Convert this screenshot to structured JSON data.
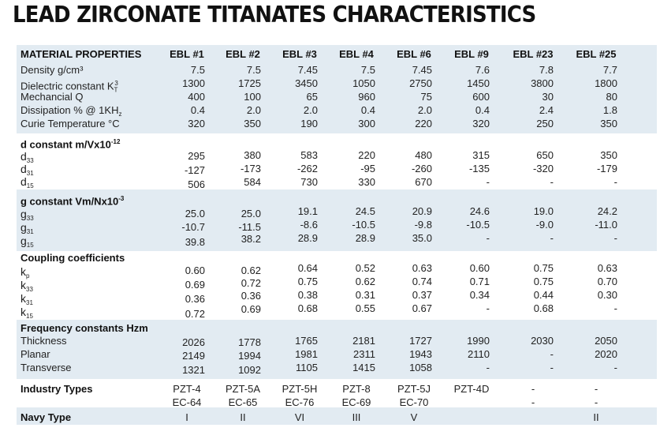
{
  "title": "LEAD ZIRCONATE TITANATES CHARACTERISTICS",
  "columns": [
    "EBL #1",
    "EBL #2",
    "EBL #3",
    "EBL #4",
    "EBL #6",
    "EBL #9",
    "EBL #23",
    "EBL #25"
  ],
  "material": {
    "heading": "MATERIAL PROPERTIES",
    "rows": [
      {
        "label": "Density g/cm³",
        "values": [
          "7.5",
          "7.5",
          "7.45",
          "7.5",
          "7.45",
          "7.6",
          "7.8",
          "7.7"
        ]
      },
      {
        "label": "Dielectric constant K",
        "sub": "T",
        "sup": "3",
        "values": [
          "1300",
          "1725",
          "3450",
          "1050",
          "2750",
          "1450",
          "3800",
          "1800"
        ]
      },
      {
        "label": "Mechancial Q",
        "values": [
          "400",
          "100",
          "65",
          "960",
          "75",
          "600",
          "30",
          "80"
        ]
      },
      {
        "label": "Dissipation % @ 1KH",
        "sub": "z",
        "values": [
          "0.4",
          "2.0",
          "2.0",
          "0.4",
          "2.0",
          "0.4",
          "2.4",
          "1.8"
        ]
      },
      {
        "label": "Curie Temperature °C",
        "values": [
          "320",
          "350",
          "190",
          "300",
          "220",
          "320",
          "250",
          "350"
        ]
      }
    ]
  },
  "d_constant": {
    "heading": "d constant m/Vx10",
    "heading_exp": "-12",
    "rows": [
      {
        "sym": "d",
        "sub": "33",
        "values": [
          "295",
          "380",
          "583",
          "220",
          "480",
          "315",
          "650",
          "350"
        ]
      },
      {
        "sym": "d",
        "sub": "31",
        "values": [
          "-127",
          "-173",
          "-262",
          "-95",
          "-260",
          "-135",
          "-320",
          "-179"
        ]
      },
      {
        "sym": "d",
        "sub": "15",
        "values": [
          "506",
          "584",
          "730",
          "330",
          "670",
          "-",
          "-",
          "-"
        ]
      }
    ]
  },
  "g_constant": {
    "heading": "g constant Vm/Nx10",
    "heading_exp": "-3",
    "rows": [
      {
        "sym": "g",
        "sub": "33",
        "values": [
          "25.0",
          "25.0",
          "19.1",
          "24.5",
          "20.9",
          "24.6",
          "19.0",
          "24.2"
        ]
      },
      {
        "sym": "g",
        "sub": "31",
        "values": [
          "-10.7",
          "-11.5",
          "-8.6",
          "-10.5",
          "-9.8",
          "-10.5",
          "-9.0",
          "-11.0"
        ]
      },
      {
        "sym": "g",
        "sub": "15",
        "values": [
          "39.8",
          "38.2",
          "28.9",
          "28.9",
          "35.0",
          "-",
          "-",
          "-"
        ]
      }
    ]
  },
  "coupling": {
    "heading": "Coupling coefficients",
    "rows": [
      {
        "sym": "k",
        "sub": "p",
        "values": [
          "0.60",
          "0.62",
          "0.64",
          "0.52",
          "0.63",
          "0.60",
          "0.75",
          "0.63"
        ]
      },
      {
        "sym": "k",
        "sub": "33",
        "values": [
          "0.69",
          "0.72",
          "0.75",
          "0.62",
          "0.74",
          "0.71",
          "0.75",
          "0.70"
        ]
      },
      {
        "sym": "k",
        "sub": "31",
        "values": [
          "0.36",
          "0.36",
          "0.38",
          "0.31",
          "0.37",
          "0.34",
          "0.44",
          "0.30"
        ]
      },
      {
        "sym": "k",
        "sub": "15",
        "values": [
          "0.72",
          "0.69",
          "0.68",
          "0.55",
          "0.67",
          "-",
          "0.68",
          "-"
        ]
      }
    ]
  },
  "frequency": {
    "heading": "Frequency constants Hzm",
    "rows": [
      {
        "label": "Thickness",
        "values": [
          "2026",
          "1778",
          "1765",
          "2181",
          "1727",
          "1990",
          "2030",
          "2050"
        ]
      },
      {
        "label": "Planar",
        "values": [
          "2149",
          "1994",
          "1981",
          "2311",
          "1943",
          "2110",
          "-",
          "2020"
        ]
      },
      {
        "label": "Transverse",
        "values": [
          "1321",
          "1092",
          "1105",
          "1415",
          "1058",
          "-",
          "-",
          "-"
        ]
      }
    ]
  },
  "industry": {
    "heading": "Industry Types",
    "row1": [
      "PZT-4",
      "PZT-5A",
      "PZT-5H",
      "PZT-8",
      "PZT-5J",
      "PZT-4D",
      "-",
      "-"
    ],
    "row2": [
      "EC-64",
      "EC-65",
      "EC-76",
      "EC-69",
      "EC-70",
      "",
      "-",
      "-"
    ]
  },
  "navy": {
    "heading": "Navy Type",
    "values": [
      "I",
      "II",
      "VI",
      "III",
      "V",
      "",
      "",
      "II"
    ]
  }
}
